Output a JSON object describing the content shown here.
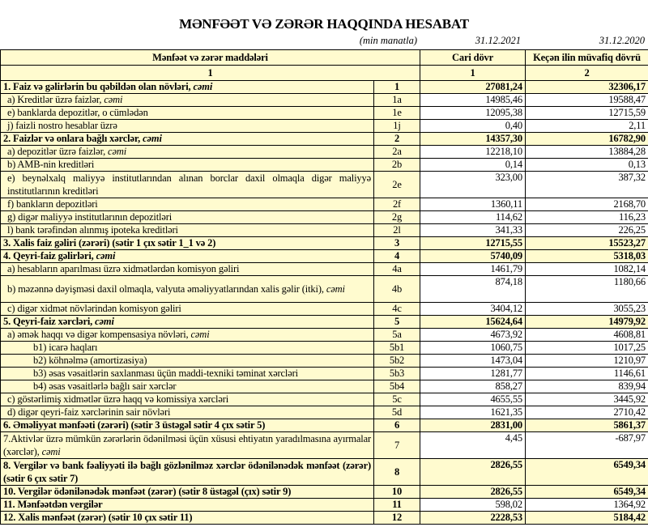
{
  "title": "MƏNFƏƏT VƏ ZƏRƏR HAQQINDA HESABAT",
  "unit": "(min manatla)",
  "date_current": "31.12.2021",
  "date_previous": "31.12.2020",
  "header": {
    "items": "Mənfəət və zərər maddələri",
    "current": "Cari dövr",
    "previous": "Keçən ilin müvafiq dövrü",
    "num_items": "1",
    "num_current": "1",
    "num_previous": "2"
  },
  "rows": [
    {
      "label": "1. Faiz və gəlirlərin bu qəbildən olan növləri, ",
      "em": "cəmi",
      "code": "1",
      "cur": "27081,24",
      "prev": "32306,17",
      "bold": true,
      "indent": 0
    },
    {
      "label": "a) Kreditlər üzrə faizlər, ",
      "em": "cəmi",
      "code": "1a",
      "cur": "14985,46",
      "prev": "19588,47",
      "indent": 1
    },
    {
      "label": "e) banklarda depozitlər, o cümlədən",
      "code": "1e",
      "cur": "12095,38",
      "prev": "12715,59",
      "indent": 1
    },
    {
      "label": "j) faizli nostro hesablar üzrə",
      "code": "1j",
      "cur": "0,40",
      "prev": "2,11",
      "indent": 1
    },
    {
      "label": "2. Faizlər və onlara bağlı xərclər, ",
      "em": "cəmi",
      "code": "2",
      "cur": "14357,30",
      "prev": "16782,90",
      "bold": true,
      "indent": 0
    },
    {
      "label": "a) depozitlər üzrə faizlər, ",
      "em": "cəmi",
      "code": "2a",
      "cur": "12218,10",
      "prev": "13884,28",
      "indent": 1
    },
    {
      "label": "b) AMB-nin kreditləri",
      "code": "2b",
      "cur": "0,14",
      "prev": "0,13",
      "indent": 1
    },
    {
      "label": "e) beynəlxalq maliyyə institutlarından alınan borclar daxil olmaqla digər maliyyə institutlarının kreditləri",
      "code": "2e",
      "cur": "323,00",
      "prev": "387,32",
      "indent": 1,
      "dbl": true
    },
    {
      "label": "f) bankların depozitləri",
      "code": "2f",
      "cur": "1360,11",
      "prev": "2168,70",
      "indent": 1
    },
    {
      "label": "g) digər maliyyə institutlarının depozitləri",
      "code": "2g",
      "cur": "114,62",
      "prev": "116,23",
      "indent": 1
    },
    {
      "label": "l) bank tərəfindən alınmış ipoteka kreditləri",
      "code": "2l",
      "cur": "341,33",
      "prev": "226,25",
      "indent": 1
    },
    {
      "label": "3. Xalis faiz gəliri (zərəri) (sətir 1 çıx sətir 1_1 və 2)",
      "code": "3",
      "cur": "12715,55",
      "prev": "15523,27",
      "bold": true,
      "indent": 0
    },
    {
      "label": "4. Qeyri-faiz gəlirləri, ",
      "em": "cəmi",
      "code": "4",
      "cur": "5740,09",
      "prev": "5318,03",
      "bold": true,
      "indent": 0
    },
    {
      "label": "a) hesabların aparılması üzrə xidmətlərdən komisyon gəliri",
      "code": "4a",
      "cur": "1461,79",
      "prev": "1082,14",
      "indent": 1
    },
    {
      "label": "b) məzənnə dəyişməsi daxil olmaqla, valyuta əməliyyatlarından xalis gəlir (itki), ",
      "em": "cəmi",
      "code": "4b",
      "cur": "874,18",
      "prev": "1180,66",
      "indent": 1,
      "dbl": true
    },
    {
      "label": "c) digər xidmət növlərindən komisyon gəliri",
      "code": "4c",
      "cur": "3404,12",
      "prev": "3055,23",
      "indent": 1
    },
    {
      "label": "5. Qeyri-faiz xərcləri, ",
      "em": "cəmi",
      "code": "5",
      "cur": "15624,64",
      "prev": "14979,92",
      "bold": true,
      "indent": 0
    },
    {
      "label": "a) əmək haqqı və digər kompensasiya növləri, ",
      "em": "cəmi",
      "code": "5a",
      "cur": "4673,92",
      "prev": "4608,81",
      "indent": 1
    },
    {
      "label": "b1) icarə haqları",
      "code": "5b1",
      "cur": "1060,75",
      "prev": "1017,25",
      "indent": 2
    },
    {
      "label": "b2) köhnəlmə (amortizasiya)",
      "code": "5b2",
      "cur": "1473,04",
      "prev": "1210,97",
      "indent": 2
    },
    {
      "label": "b3) əsas vəsaitlərin saxlanması üçün maddi-texniki təminat xərcləri",
      "code": "5b3",
      "cur": "1281,77",
      "prev": "1146,61",
      "indent": 2
    },
    {
      "label": "b4) əsas vəsaitlərlə bağlı sair xərclər",
      "code": "5b4",
      "cur": "858,27",
      "prev": "839,94",
      "indent": 2
    },
    {
      "label": "c) göstərlimiş xidmətlər üzrə haqq və komissiya xərcləri",
      "code": "5c",
      "cur": "4655,55",
      "prev": "3445,92",
      "indent": 1
    },
    {
      "label": "d) digər qeyri-faiz xərclərinin sair növləri",
      "code": "5d",
      "cur": "1621,35",
      "prev": "2710,42",
      "indent": 1
    },
    {
      "label": "6. Əməliyyat mənfəəti (zərəri) (sətir 3 üstəgəl sətir 4 çıx sətir 5)",
      "code": "6",
      "cur": "2831,00",
      "prev": "5861,37",
      "bold": true,
      "indent": 0
    },
    {
      "label": "7.Aktivlər üzrə mümkün zərərlərin ödənilməsi üçün xüsusi ehtiyatın yaradılmasına ayırmalar (xərclər), ",
      "em": "cəmi",
      "code": "7",
      "cur": "4,45",
      "prev": "-687,97",
      "indent": 0,
      "dbl": true
    },
    {
      "label": "8. Vergilər və bank fəaliyyəti ilə bağlı gözlənilməz xərclər ödənilənədək mənfəət (zərər) (sətir 6 çıx sətir 7)",
      "code": "8",
      "cur": "2826,55",
      "prev": "6549,34",
      "bold": true,
      "indent": 0,
      "dbl": true
    },
    {
      "label": "10. Vergilər ödənilənədək mənfəət (zərər) (sətir 8 üstəgəl (çıx) sətir 9)",
      "code": "10",
      "cur": "2826,55",
      "prev": "6549,34",
      "bold": true,
      "indent": 0
    },
    {
      "label": "11. Mənfəətdən vergilər",
      "code": "11",
      "cur": "598,02",
      "prev": "1364,92",
      "indent": 0,
      "boldlabel": true
    },
    {
      "label": "12. Xalis mənfəət (zərər) (sətir 10 çıx sətir 11)",
      "code": "12",
      "cur": "2228,53",
      "prev": "5184,42",
      "bold": true,
      "indent": 0
    }
  ]
}
